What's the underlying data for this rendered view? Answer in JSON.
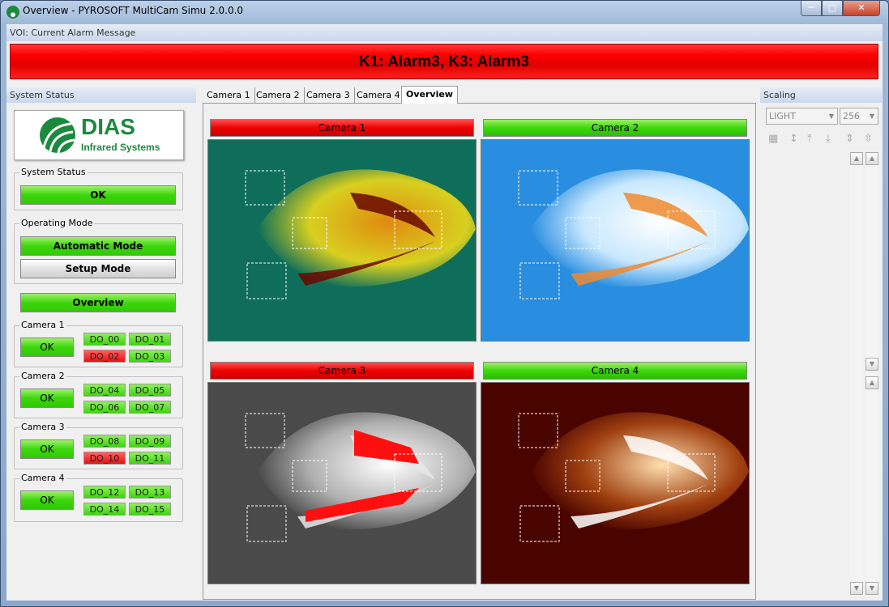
{
  "window": {
    "title": "Overview - PYROSOFT MultiCam Simu 2.0.0.0",
    "minimize": "─",
    "maximize": "□",
    "close": "✕"
  },
  "voi": {
    "label": "VOI: Current Alarm Message",
    "alarm_text": "K1: Alarm3, K3: Alarm3",
    "alarm_color": "#ff0000"
  },
  "system_status": {
    "header": "System Status",
    "logo": {
      "brand": "DIAS",
      "subtitle": "Infrared Systems"
    },
    "status_group": "System Status",
    "status_value": "OK",
    "operating_mode_group": "Operating Mode",
    "automatic_mode": "Automatic Mode",
    "setup_mode": "Setup Mode",
    "overview_button": "Overview",
    "cameras": [
      {
        "label": "Camera 1",
        "status": "OK",
        "outputs": [
          {
            "name": "DO_00",
            "state": "ok"
          },
          {
            "name": "DO_01",
            "state": "ok"
          },
          {
            "name": "DO_02",
            "state": "alarm"
          },
          {
            "name": "DO_03",
            "state": "ok"
          }
        ]
      },
      {
        "label": "Camera 2",
        "status": "OK",
        "outputs": [
          {
            "name": "DO_04",
            "state": "ok"
          },
          {
            "name": "DO_05",
            "state": "ok"
          },
          {
            "name": "DO_06",
            "state": "ok"
          },
          {
            "name": "DO_07",
            "state": "ok"
          }
        ]
      },
      {
        "label": "Camera 3",
        "status": "OK",
        "outputs": [
          {
            "name": "DO_08",
            "state": "ok"
          },
          {
            "name": "DO_09",
            "state": "ok"
          },
          {
            "name": "DO_10",
            "state": "alarm"
          },
          {
            "name": "DO_11",
            "state": "ok"
          }
        ]
      },
      {
        "label": "Camera 4",
        "status": "OK",
        "outputs": [
          {
            "name": "DO_12",
            "state": "ok"
          },
          {
            "name": "DO_13",
            "state": "ok"
          },
          {
            "name": "DO_14",
            "state": "ok"
          },
          {
            "name": "DO_15",
            "state": "ok"
          }
        ]
      }
    ]
  },
  "tabs": [
    {
      "label": "Camera 1"
    },
    {
      "label": "Camera 2"
    },
    {
      "label": "Camera 3"
    },
    {
      "label": "Camera 4"
    },
    {
      "label": "Overview",
      "active": true
    }
  ],
  "views": [
    {
      "title": "Camera 1",
      "state": "alarm",
      "palette": "iron-green"
    },
    {
      "title": "Camera 2",
      "state": "ok",
      "palette": "blue"
    },
    {
      "title": "Camera 3",
      "state": "alarm",
      "palette": "grayscale-red"
    },
    {
      "title": "Camera 4",
      "state": "ok",
      "palette": "dark-red"
    }
  ],
  "scaling": {
    "header": "Scaling",
    "palette_value": "LIGHT",
    "levels_value": "256"
  }
}
